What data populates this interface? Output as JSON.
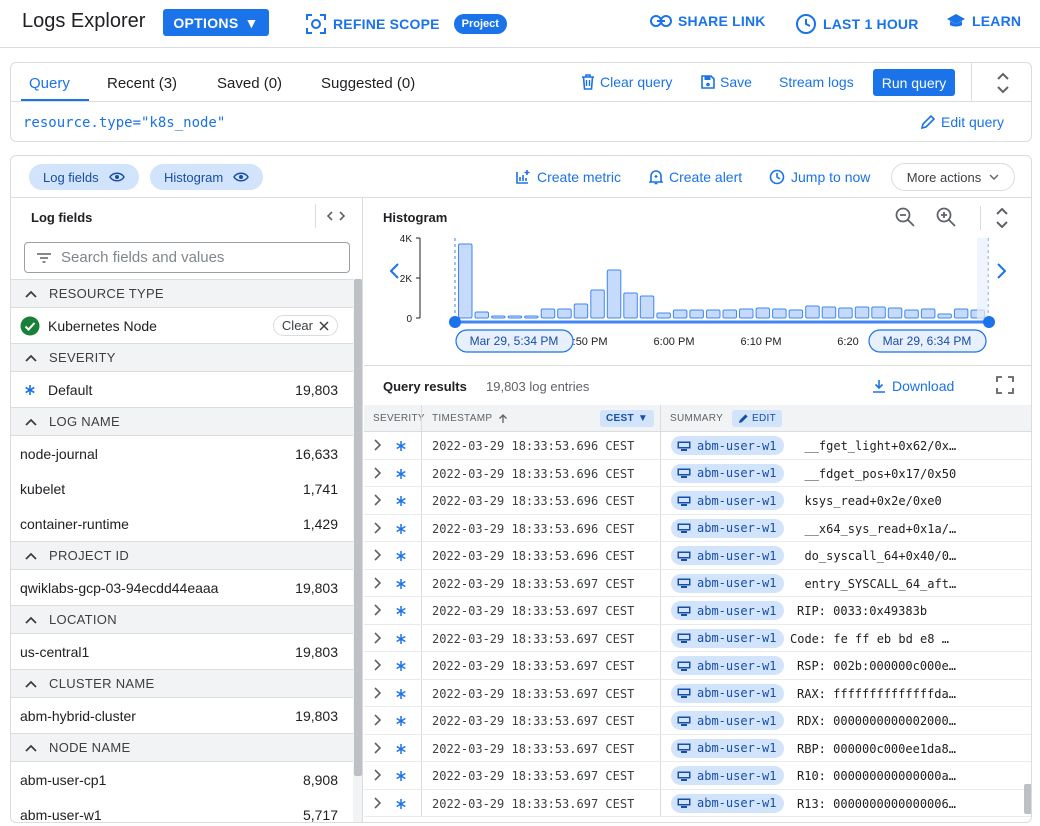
{
  "header": {
    "title": "Logs Explorer",
    "options_label": "OPTIONS",
    "refine_label": "REFINE SCOPE",
    "project_chip": "Project",
    "share_label": "SHARE LINK",
    "time_label": "LAST 1 HOUR",
    "learn_label": "LEARN"
  },
  "query": {
    "tabs": [
      "Query",
      "Recent (3)",
      "Saved (0)",
      "Suggested (0)"
    ],
    "clear_label": "Clear query",
    "save_label": "Save",
    "stream_label": "Stream logs",
    "run_label": "Run query",
    "text": "resource.type=\"k8s_node\"",
    "edit_label": "Edit query"
  },
  "toolbar": {
    "log_fields_chip": "Log fields",
    "histogram_chip": "Histogram",
    "create_metric": "Create metric",
    "create_alert": "Create alert",
    "jump_now": "Jump to now",
    "more_actions": "More actions"
  },
  "log_fields": {
    "title": "Log fields",
    "search_placeholder": "Search fields and values",
    "clear_label": "Clear",
    "sections": [
      {
        "title": "RESOURCE TYPE",
        "items": [
          {
            "name": "Kubernetes Node",
            "count": "",
            "selected": true
          }
        ]
      },
      {
        "title": "SEVERITY",
        "items": [
          {
            "name": "Default",
            "count": "19,803",
            "severity": true
          }
        ]
      },
      {
        "title": "LOG NAME",
        "items": [
          {
            "name": "node-journal",
            "count": "16,633"
          },
          {
            "name": "kubelet",
            "count": "1,741"
          },
          {
            "name": "container-runtime",
            "count": "1,429"
          }
        ]
      },
      {
        "title": "PROJECT ID",
        "items": [
          {
            "name": "qwiklabs-gcp-03-94ecdd44eaaa",
            "count": "19,803"
          }
        ]
      },
      {
        "title": "LOCATION",
        "items": [
          {
            "name": "us-central1",
            "count": "19,803"
          }
        ]
      },
      {
        "title": "CLUSTER NAME",
        "items": [
          {
            "name": "abm-hybrid-cluster",
            "count": "19,803"
          }
        ]
      },
      {
        "title": "NODE NAME",
        "items": [
          {
            "name": "abm-user-cp1",
            "count": "8,908"
          },
          {
            "name": "abm-user-w1",
            "count": "5,717"
          }
        ]
      }
    ]
  },
  "histogram": {
    "title": "Histogram",
    "start_label": "Mar 29, 5:34 PM",
    "end_label": "Mar 29, 6:34 PM"
  },
  "chart_data": {
    "type": "bar",
    "title": "Histogram",
    "y_ticks": [
      "4K",
      "2K",
      "0"
    ],
    "ylim": [
      0,
      4000
    ],
    "x_ticks": [
      "5:50 PM",
      "6:00 PM",
      "6:10 PM",
      "6:20"
    ],
    "values": [
      3700,
      300,
      100,
      100,
      100,
      450,
      450,
      700,
      1400,
      2400,
      1250,
      1100,
      250,
      400,
      400,
      400,
      400,
      450,
      500,
      450,
      400,
      600,
      550,
      500,
      550,
      550,
      500,
      400,
      450,
      200,
      450,
      400
    ],
    "grid": false,
    "color": "#c6dafc",
    "edge_color": "#4285f4"
  },
  "results": {
    "title": "Query results",
    "count_label": "19,803 log entries",
    "download_label": "Download",
    "columns": {
      "severity": "SEVERITY",
      "timestamp": "TIMESTAMP",
      "tz": "CEST",
      "summary": "SUMMARY",
      "edit": "EDIT"
    },
    "rows": [
      {
        "ts": "2022-03-29 18:33:53.696 CEST",
        "host": "abm-user-w1",
        "summary": "  __fget_light+0x62/0x…"
      },
      {
        "ts": "2022-03-29 18:33:53.696 CEST",
        "host": "abm-user-w1",
        "summary": "  __fdget_pos+0x17/0x50"
      },
      {
        "ts": "2022-03-29 18:33:53.696 CEST",
        "host": "abm-user-w1",
        "summary": "  ksys_read+0x2e/0xe0"
      },
      {
        "ts": "2022-03-29 18:33:53.696 CEST",
        "host": "abm-user-w1",
        "summary": "  __x64_sys_read+0x1a/…"
      },
      {
        "ts": "2022-03-29 18:33:53.696 CEST",
        "host": "abm-user-w1",
        "summary": "  do_syscall_64+0x40/0…"
      },
      {
        "ts": "2022-03-29 18:33:53.697 CEST",
        "host": "abm-user-w1",
        "summary": "  entry_SYSCALL_64_aft…"
      },
      {
        "ts": "2022-03-29 18:33:53.697 CEST",
        "host": "abm-user-w1",
        "summary": "RIP: 0033:0x49383b"
      },
      {
        "ts": "2022-03-29 18:33:53.697 CEST",
        "host": "abm-user-w1",
        "summary": "Code: fe ff eb bd e8 …"
      },
      {
        "ts": "2022-03-29 18:33:53.697 CEST",
        "host": "abm-user-w1",
        "summary": "RSP: 002b:000000c000e…"
      },
      {
        "ts": "2022-03-29 18:33:53.697 CEST",
        "host": "abm-user-w1",
        "summary": "RAX: ffffffffffffffda…"
      },
      {
        "ts": "2022-03-29 18:33:53.697 CEST",
        "host": "abm-user-w1",
        "summary": "RDX: 0000000000002000…"
      },
      {
        "ts": "2022-03-29 18:33:53.697 CEST",
        "host": "abm-user-w1",
        "summary": "RBP: 000000c000ee1da8…"
      },
      {
        "ts": "2022-03-29 18:33:53.697 CEST",
        "host": "abm-user-w1",
        "summary": "R10: 000000000000000a…"
      },
      {
        "ts": "2022-03-29 18:33:53.697 CEST",
        "host": "abm-user-w1",
        "summary": "R13: 0000000000000006…"
      }
    ]
  }
}
